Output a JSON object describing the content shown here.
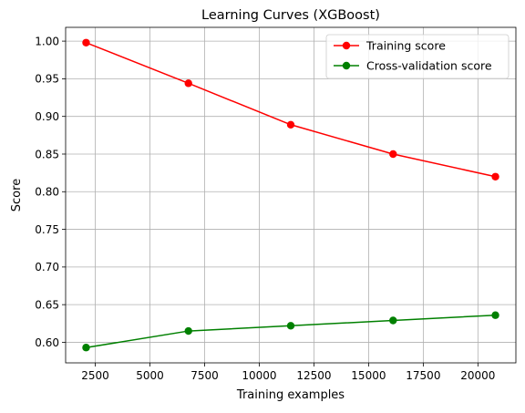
{
  "chart_data": {
    "type": "line",
    "title": "Learning Curves (XGBoost)",
    "xlabel": "Training examples",
    "ylabel": "Score",
    "x": [
      2080,
      6760,
      11440,
      16120,
      20800
    ],
    "series": [
      {
        "name": "Training score",
        "color": "#ff0000",
        "marker": "circle",
        "values": [
          0.998,
          0.944,
          0.889,
          0.85,
          0.82
        ]
      },
      {
        "name": "Cross-validation score",
        "color": "#008000",
        "marker": "circle",
        "values": [
          0.593,
          0.615,
          0.622,
          0.629,
          0.636
        ]
      }
    ],
    "xlim": [
      1144,
      21736
    ],
    "ylim": [
      0.5727,
      1.0183
    ],
    "xticks": [
      2500,
      5000,
      7500,
      10000,
      12500,
      15000,
      17500,
      20000
    ],
    "yticks": [
      0.6,
      0.65,
      0.7,
      0.75,
      0.8,
      0.85,
      0.9,
      0.95,
      1.0
    ],
    "xtick_labels": [
      "2500",
      "5000",
      "7500",
      "10000",
      "12500",
      "15000",
      "17500",
      "20000"
    ],
    "ytick_labels": [
      "0.60",
      "0.65",
      "0.70",
      "0.75",
      "0.80",
      "0.85",
      "0.90",
      "0.95",
      "1.00"
    ],
    "grid": true,
    "legend_position": "top-right",
    "grid_color": "#b0b0b0"
  }
}
